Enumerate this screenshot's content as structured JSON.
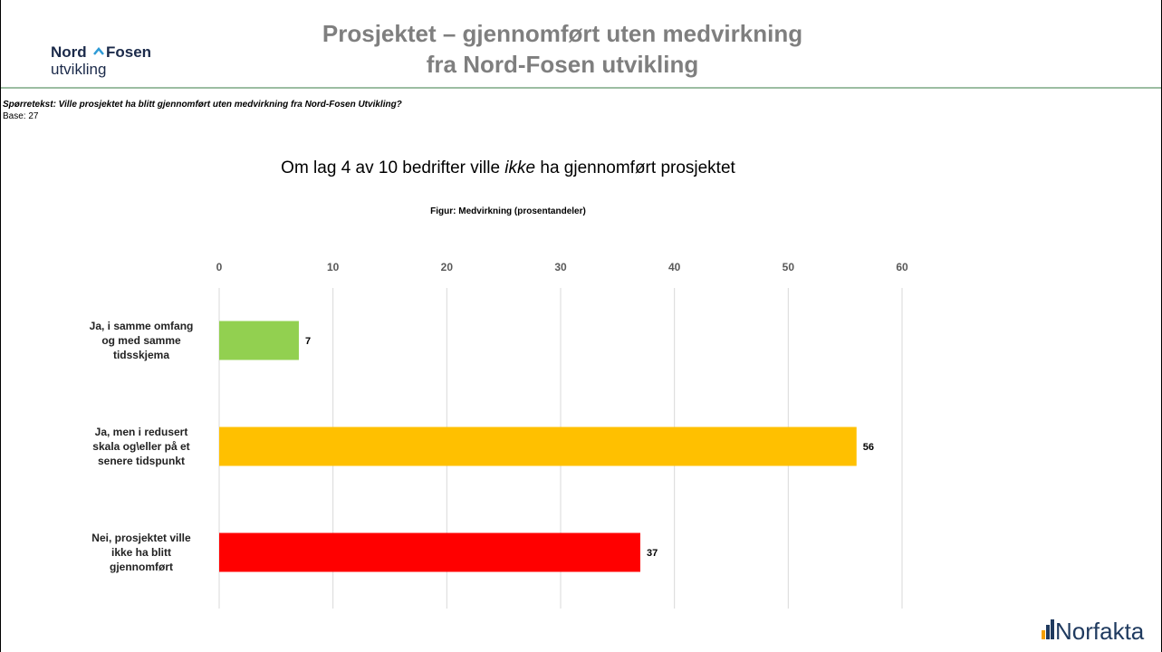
{
  "header": {
    "title_lines": [
      "Prosjektet – gjennomført uten medvirkning",
      "fra Nord-Fosen utvikling"
    ],
    "logo": {
      "word1": "Nord",
      "word2": "Fosen",
      "word3": "utvikling"
    },
    "question": "Spørretekst: Ville prosjektet ha blitt gjennomført uten medvirkning fra Nord-Fosen Utvikling?",
    "base": "Base: 27",
    "headline": [
      "Om lag 4 av 10 bedrifter ville ",
      "ikke",
      " ha gjennomført  prosjektet"
    ]
  },
  "footer": {
    "logo": "Norfakta"
  },
  "chart_data": {
    "type": "hbar",
    "title": "Figur: Medvirkning (prosentandeler)",
    "categories": [
      "Ja, i samme omfang\nog med samme\ntidsskjema",
      "Ja, men i redusert\nskala og\\eller på et\nsenere tidspunkt",
      "Nei, prosjektet ville\nikke ha blitt\ngjennomført"
    ],
    "values": [
      7,
      56,
      37
    ],
    "colors": [
      "#92d050",
      "#ffc000",
      "#ff0000"
    ],
    "xlim": [
      0,
      60
    ],
    "xticks": [
      0,
      10,
      20,
      30,
      40,
      50,
      60
    ],
    "grid": true
  }
}
